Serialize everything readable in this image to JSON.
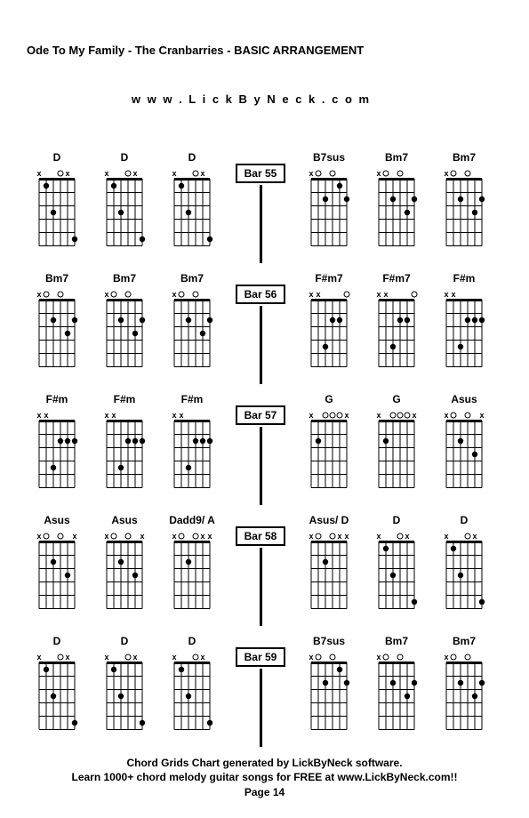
{
  "header": {
    "title": "Ode To My Family - The Cranbarries - BASIC ARRANGEMENT",
    "url": "w w w . L i c k B y N e c k . c o m"
  },
  "layout": {
    "chord_cell_width": 68,
    "diagram_width": 52,
    "diagram_height": 90,
    "frets": 5,
    "strings": 6,
    "marker_radius": 3.2,
    "colors": {
      "line": "#000000",
      "bg": "#ffffff",
      "text": "#000000"
    },
    "font": {
      "chord_name_size": 12,
      "header_size": 13,
      "footer_size": 12
    }
  },
  "rows": [
    {
      "bar": "Bar 55",
      "left": [
        {
          "name": "D",
          "mutes": [
            1,
            5
          ],
          "opens": [
            4
          ],
          "dots": [
            [
              2,
              1,
              2
            ],
            [
              3,
              3,
              2
            ],
            [
              6,
              5,
              2
            ]
          ]
        },
        {
          "name": "D",
          "mutes": [
            1,
            5
          ],
          "opens": [
            4
          ],
          "dots": [
            [
              2,
              1,
              2
            ],
            [
              3,
              3,
              2
            ],
            [
              6,
              5,
              2
            ]
          ]
        },
        {
          "name": "D",
          "mutes": [
            1,
            5
          ],
          "opens": [
            4
          ],
          "dots": [
            [
              2,
              1,
              2
            ],
            [
              3,
              3,
              2
            ],
            [
              6,
              5,
              2
            ]
          ]
        }
      ],
      "right": [
        {
          "name": "B7sus",
          "mutes": [
            1
          ],
          "opens": [
            2,
            4
          ],
          "dots": [
            [
              3,
              2,
              2
            ],
            [
              5,
              1,
              2
            ],
            [
              6,
              2,
              2
            ]
          ]
        },
        {
          "name": "Bm7",
          "mutes": [
            1
          ],
          "opens": [
            2,
            4
          ],
          "dots": [
            [
              3,
              2,
              2
            ],
            [
              5,
              3,
              2
            ],
            [
              6,
              2,
              2
            ]
          ]
        },
        {
          "name": "Bm7",
          "mutes": [
            1
          ],
          "opens": [
            2,
            4
          ],
          "dots": [
            [
              3,
              2,
              2
            ],
            [
              5,
              3,
              2
            ],
            [
              6,
              2,
              2
            ]
          ]
        }
      ]
    },
    {
      "bar": "Bar 56",
      "left": [
        {
          "name": "Bm7",
          "mutes": [
            1
          ],
          "opens": [
            2,
            4
          ],
          "dots": [
            [
              3,
              2,
              2
            ],
            [
              5,
              3,
              2
            ],
            [
              6,
              2,
              2
            ]
          ]
        },
        {
          "name": "Bm7",
          "mutes": [
            1
          ],
          "opens": [
            2,
            4
          ],
          "dots": [
            [
              3,
              2,
              2
            ],
            [
              5,
              3,
              2
            ],
            [
              6,
              2,
              2
            ]
          ]
        },
        {
          "name": "Bm7",
          "mutes": [
            1
          ],
          "opens": [
            2,
            4
          ],
          "dots": [
            [
              3,
              2,
              2
            ],
            [
              5,
              3,
              2
            ],
            [
              6,
              2,
              2
            ]
          ]
        }
      ],
      "right": [
        {
          "name": "F#m7",
          "mutes": [
            1,
            2
          ],
          "opens": [
            6
          ],
          "dots": [
            [
              3,
              4,
              2
            ],
            [
              4,
              2,
              2
            ],
            [
              5,
              2,
              2
            ]
          ]
        },
        {
          "name": "F#m7",
          "mutes": [
            1,
            2
          ],
          "opens": [
            6
          ],
          "dots": [
            [
              3,
              4,
              2
            ],
            [
              4,
              2,
              2
            ],
            [
              5,
              2,
              2
            ]
          ]
        },
        {
          "name": "F#m",
          "mutes": [
            1,
            2
          ],
          "opens": [],
          "dots": [
            [
              3,
              4,
              2
            ],
            [
              4,
              2,
              2
            ],
            [
              5,
              2,
              2
            ],
            [
              6,
              2,
              2
            ]
          ]
        }
      ]
    },
    {
      "bar": "Bar 57",
      "left": [
        {
          "name": "F#m",
          "mutes": [
            1,
            2
          ],
          "opens": [],
          "dots": [
            [
              3,
              4,
              2
            ],
            [
              4,
              2,
              2
            ],
            [
              5,
              2,
              2
            ],
            [
              6,
              2,
              2
            ]
          ]
        },
        {
          "name": "F#m",
          "mutes": [
            1,
            2
          ],
          "opens": [],
          "dots": [
            [
              3,
              4,
              2
            ],
            [
              4,
              2,
              2
            ],
            [
              5,
              2,
              2
            ],
            [
              6,
              2,
              2
            ]
          ]
        },
        {
          "name": "F#m",
          "mutes": [
            1,
            2
          ],
          "opens": [],
          "dots": [
            [
              3,
              4,
              2
            ],
            [
              4,
              2,
              2
            ],
            [
              5,
              2,
              2
            ],
            [
              6,
              2,
              2
            ]
          ]
        }
      ],
      "right": [
        {
          "name": "G",
          "mutes": [
            1,
            6
          ],
          "opens": [
            3,
            4,
            5
          ],
          "dots": [
            [
              2,
              2,
              2
            ]
          ]
        },
        {
          "name": "G",
          "mutes": [
            1,
            6
          ],
          "opens": [
            3,
            4,
            5
          ],
          "dots": [
            [
              2,
              2,
              2
            ]
          ]
        },
        {
          "name": "Asus",
          "mutes": [
            1,
            6
          ],
          "opens": [
            2,
            4
          ],
          "dots": [
            [
              3,
              2,
              2
            ],
            [
              5,
              3,
              2
            ]
          ]
        }
      ]
    },
    {
      "bar": "Bar 58",
      "left": [
        {
          "name": "Asus",
          "mutes": [
            1,
            6
          ],
          "opens": [
            2,
            4
          ],
          "dots": [
            [
              3,
              2,
              2
            ],
            [
              5,
              3,
              2
            ]
          ]
        },
        {
          "name": "Asus",
          "mutes": [
            1,
            6
          ],
          "opens": [
            2,
            4
          ],
          "dots": [
            [
              3,
              2,
              2
            ],
            [
              5,
              3,
              2
            ]
          ]
        },
        {
          "name": "Dadd9/ A",
          "mutes": [
            1,
            5,
            6
          ],
          "opens": [
            2,
            4
          ],
          "dots": [
            [
              3,
              2,
              2
            ]
          ]
        }
      ],
      "right": [
        {
          "name": "Asus/ D",
          "mutes": [
            1,
            5,
            6
          ],
          "opens": [
            2,
            4
          ],
          "dots": [
            [
              3,
              2,
              2
            ]
          ]
        },
        {
          "name": "D",
          "mutes": [
            1,
            5
          ],
          "opens": [
            4
          ],
          "dots": [
            [
              2,
              1,
              2
            ],
            [
              3,
              3,
              2
            ],
            [
              6,
              5,
              2
            ]
          ]
        },
        {
          "name": "D",
          "mutes": [
            1,
            5
          ],
          "opens": [
            4
          ],
          "dots": [
            [
              2,
              1,
              2
            ],
            [
              3,
              3,
              2
            ],
            [
              6,
              5,
              2
            ]
          ]
        }
      ]
    },
    {
      "bar": "Bar 59",
      "left": [
        {
          "name": "D",
          "mutes": [
            1,
            5
          ],
          "opens": [
            4
          ],
          "dots": [
            [
              2,
              1,
              2
            ],
            [
              3,
              3,
              2
            ],
            [
              6,
              5,
              2
            ]
          ]
        },
        {
          "name": "D",
          "mutes": [
            1,
            5
          ],
          "opens": [
            4
          ],
          "dots": [
            [
              2,
              1,
              2
            ],
            [
              3,
              3,
              2
            ],
            [
              6,
              5,
              2
            ]
          ]
        },
        {
          "name": "D",
          "mutes": [
            1,
            5
          ],
          "opens": [
            4
          ],
          "dots": [
            [
              2,
              1,
              2
            ],
            [
              3,
              3,
              2
            ],
            [
              6,
              5,
              2
            ]
          ]
        }
      ],
      "right": [
        {
          "name": "B7sus",
          "mutes": [
            1
          ],
          "opens": [
            2,
            4
          ],
          "dots": [
            [
              3,
              2,
              2
            ],
            [
              5,
              1,
              2
            ],
            [
              6,
              2,
              2
            ]
          ]
        },
        {
          "name": "Bm7",
          "mutes": [
            1
          ],
          "opens": [
            2,
            4
          ],
          "dots": [
            [
              3,
              2,
              2
            ],
            [
              5,
              3,
              2
            ],
            [
              6,
              2,
              2
            ]
          ]
        },
        {
          "name": "Bm7",
          "mutes": [
            1
          ],
          "opens": [
            2,
            4
          ],
          "dots": [
            [
              3,
              2,
              2
            ],
            [
              5,
              3,
              2
            ],
            [
              6,
              2,
              2
            ]
          ]
        }
      ]
    }
  ],
  "footer": {
    "line1": "Chord Grids Chart generated by LickByNeck software.",
    "line2": "Learn 1000+ chord melody guitar songs for FREE at www.LickByNeck.com!!",
    "page": "Page 14"
  }
}
